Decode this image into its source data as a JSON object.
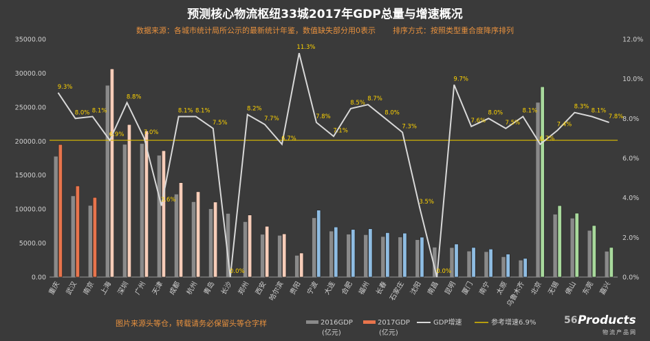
{
  "title": "预测核心物流枢纽33城2017年GDP总量与增速概况",
  "subtitle": {
    "source": "数据来源：各城市统计局所公示的最新统计年鉴，数值缺失部分用0表示",
    "sort": "排序方式：按照类型重合度降序排列"
  },
  "footnote": "图片来源头等仓，转载请务必保留头等仓字样",
  "watermark": {
    "prefix": "56",
    "brand": "Products",
    "tagline": "物流产品网"
  },
  "colors": {
    "background": "#3a3a3a",
    "gdp2016": "#8a8a8a",
    "gdp2017_group1": "#e8744c",
    "gdp2017_group2": "#f7cdb9",
    "gdp2017_group3": "#8fbde3",
    "gdp2017_group4": "#a8d99c",
    "growth_line": "#d9d9d9",
    "reference_line": "#e0c000",
    "label": "#ffd400"
  },
  "chart_data": {
    "type": "bar+line",
    "title": "预测核心物流枢纽33城2017年GDP总量与增速概况",
    "categories": [
      "重庆",
      "武汉",
      "南京",
      "上海",
      "深圳",
      "广州",
      "天津",
      "成都",
      "杭州",
      "青岛",
      "长沙",
      "郑州",
      "西安",
      "哈尔滨",
      "贵阳",
      "宁波",
      "大连",
      "合肥",
      "福州",
      "长春",
      "石家庄",
      "沈阳",
      "南昌",
      "昆明",
      "厦门",
      "南宁",
      "太原",
      "乌鲁木齐",
      "北京",
      "无锡",
      "佛山",
      "东莞",
      "嘉兴"
    ],
    "groups": [
      1,
      1,
      1,
      2,
      2,
      2,
      2,
      2,
      2,
      2,
      2,
      2,
      2,
      2,
      2,
      3,
      3,
      3,
      3,
      3,
      3,
      3,
      3,
      3,
      3,
      3,
      3,
      3,
      4,
      4,
      4,
      4,
      4
    ],
    "series": [
      {
        "name": "2016GDP",
        "unit": "(亿元)",
        "axis": "left",
        "kind": "bar",
        "values": [
          17740,
          11913,
          10503,
          28179,
          19493,
          19611,
          17885,
          12170,
          11050,
          10011,
          9324,
          8114,
          6257,
          6102,
          3158,
          8686,
          6730,
          6274,
          6198,
          5928,
          5857,
          5460,
          4355,
          4300,
          3784,
          3703,
          2955,
          2459,
          25669,
          9210,
          8630,
          6828,
          3760
        ]
      },
      {
        "name": "2017GDP",
        "unit": "(亿元)",
        "axis": "left",
        "kind": "bar",
        "values": [
          19500,
          13410,
          11715,
          30634,
          22438,
          21503,
          18595,
          13889,
          12556,
          11037,
          0,
          9130,
          7470,
          6355,
          3538,
          9846,
          7364,
          7003,
          7104,
          6530,
          6460,
          5865,
          0,
          4857,
          4351,
          4119,
          3382,
          2744,
          28000,
          10512,
          9399,
          7582,
          4355
        ]
      },
      {
        "name": "GDP增速",
        "axis": "right",
        "kind": "line",
        "values": [
          9.3,
          8.0,
          8.1,
          6.9,
          8.8,
          7.0,
          3.6,
          8.1,
          8.1,
          7.5,
          0.0,
          8.2,
          7.7,
          6.7,
          11.3,
          7.8,
          7.1,
          8.5,
          8.7,
          8.0,
          7.3,
          3.5,
          0.0,
          9.7,
          7.6,
          8.0,
          7.5,
          8.1,
          6.7,
          7.4,
          8.3,
          8.1,
          7.8
        ]
      },
      {
        "name": "参考增速6.9%",
        "axis": "right",
        "kind": "reference",
        "value": 6.9
      }
    ],
    "growth_labels": [
      "9.3%",
      "8.0%",
      "8.1%",
      "6.9%",
      "8.8%",
      "7.0%",
      "3.6%",
      "8.1%",
      "8.1%",
      "7.5%",
      "0.0%",
      "8.2%",
      "7.7%",
      "6.7%",
      "11.3%",
      "7.8%",
      "7.1%",
      "8.5%",
      "8.7%",
      "8.0%",
      "7.3%",
      "3.5%",
      "0.0%",
      "9.7%",
      "7.6%",
      "8.0%",
      "7.5%",
      "8.1%",
      "6.7%",
      "7.4%",
      "8.3%",
      "8.1%",
      "7.8%"
    ],
    "y_left": {
      "min": 0,
      "max": 35000,
      "ticks": [
        "0.00",
        "5000.00",
        "10000.00",
        "15000.00",
        "20000.00",
        "25000.00",
        "30000.00",
        "35000.00"
      ]
    },
    "y_right": {
      "min": 0,
      "max": 12,
      "ticks": [
        "0.0%",
        "2.0%",
        "4.0%",
        "6.0%",
        "8.0%",
        "10.0%",
        "12.0%"
      ]
    },
    "legend": {
      "position": "bottom"
    },
    "grid": false
  }
}
